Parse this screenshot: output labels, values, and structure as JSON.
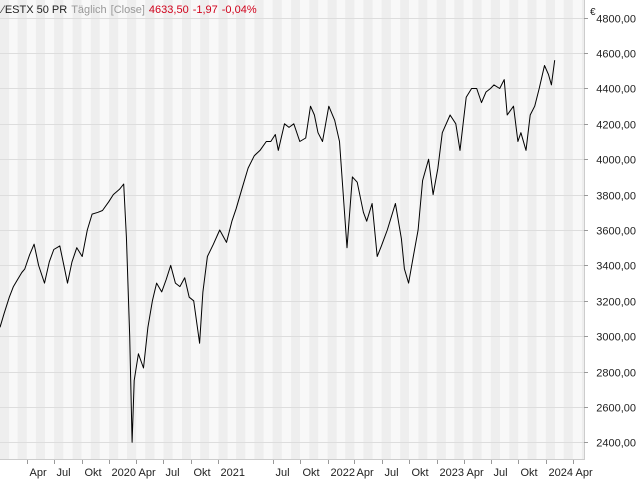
{
  "header": {
    "symbol_icon": "chart-line-icon",
    "name": "ESTX 50 PR",
    "period": "Täglich",
    "type": "[Close]",
    "last": "4633,50",
    "change": "-1,97",
    "change_pct": "-0,04%"
  },
  "colors": {
    "line": "#000000",
    "grid": "#dddddd",
    "band_light": "#f8f8f8",
    "band_dark": "#eeeeee",
    "negative": "#d0021b",
    "axis_text": "#222222"
  },
  "chart_data": {
    "type": "line",
    "title": "",
    "xlabel": "",
    "ylabel": "",
    "currency_symbol": "€",
    "ylim": [
      2300,
      4900
    ],
    "xlim": [
      "2019-01-01",
      "2024-05-08"
    ],
    "grid": true,
    "y_ticks": [
      "2400,00",
      "2600,00",
      "2800,00",
      "3000,00",
      "3200,00",
      "3400,00",
      "3600,00",
      "3800,00",
      "4000,00",
      "4200,00",
      "4400,00",
      "4600,00",
      "4800,00"
    ],
    "x_ticks": [
      {
        "date": "2019-04-01",
        "label": "Apr"
      },
      {
        "date": "2019-07-01",
        "label": "Jul"
      },
      {
        "date": "2019-10-01",
        "label": "Okt"
      },
      {
        "date": "2020-01-01",
        "label": "2020"
      },
      {
        "date": "2020-04-01",
        "label": "Apr"
      },
      {
        "date": "2020-07-01",
        "label": "Jul"
      },
      {
        "date": "2020-10-01",
        "label": "Okt"
      },
      {
        "date": "2021-01-01",
        "label": "2021"
      },
      {
        "date": "2021-07-01",
        "label": "Jul"
      },
      {
        "date": "2021-10-01",
        "label": "Okt"
      },
      {
        "date": "2022-01-01",
        "label": "2022"
      },
      {
        "date": "2022-04-01",
        "label": "Apr"
      },
      {
        "date": "2022-07-01",
        "label": "Jul"
      },
      {
        "date": "2022-10-01",
        "label": "Okt"
      },
      {
        "date": "2023-01-01",
        "label": "2023"
      },
      {
        "date": "2023-04-01",
        "label": "Apr"
      },
      {
        "date": "2023-07-01",
        "label": "Jul"
      },
      {
        "date": "2023-10-01",
        "label": "Okt"
      },
      {
        "date": "2024-01-01",
        "label": "2024"
      },
      {
        "date": "2024-04-01",
        "label": "Apr"
      }
    ],
    "series": [
      {
        "name": "",
        "x": [
          "2019-01-01",
          "2019-01-15",
          "2019-02-01",
          "2019-02-15",
          "2019-03-01",
          "2019-03-15",
          "2019-03-25",
          "2019-04-10",
          "2019-04-25",
          "2019-05-10",
          "2019-05-30",
          "2019-06-15",
          "2019-06-30",
          "2019-07-20",
          "2019-08-05",
          "2019-08-15",
          "2019-08-30",
          "2019-09-15",
          "2019-10-03",
          "2019-10-20",
          "2019-11-05",
          "2019-11-25",
          "2019-12-10",
          "2019-12-31",
          "2020-01-15",
          "2020-02-05",
          "2020-02-19",
          "2020-02-28",
          "2020-03-10",
          "2020-03-18",
          "2020-03-25",
          "2020-04-08",
          "2020-04-25",
          "2020-05-10",
          "2020-05-25",
          "2020-06-08",
          "2020-06-25",
          "2020-07-10",
          "2020-07-25",
          "2020-08-10",
          "2020-08-25",
          "2020-09-10",
          "2020-09-25",
          "2020-10-10",
          "2020-10-30",
          "2020-11-10",
          "2020-11-25",
          "2020-12-15",
          "2021-01-05",
          "2021-01-28",
          "2021-02-15",
          "2021-03-01",
          "2021-03-20",
          "2021-04-10",
          "2021-05-01",
          "2021-05-20",
          "2021-06-10",
          "2021-06-25",
          "2021-07-10",
          "2021-07-20",
          "2021-08-10",
          "2021-08-25",
          "2021-09-10",
          "2021-09-30",
          "2021-10-20",
          "2021-11-05",
          "2021-11-18",
          "2021-11-30",
          "2021-12-15",
          "2022-01-05",
          "2022-01-25",
          "2022-02-10",
          "2022-03-07",
          "2022-03-25",
          "2022-04-10",
          "2022-05-01",
          "2022-05-12",
          "2022-05-30",
          "2022-06-16",
          "2022-06-30",
          "2022-07-20",
          "2022-08-16",
          "2022-09-05",
          "2022-09-15",
          "2022-09-29",
          "2022-10-15",
          "2022-10-31",
          "2022-11-15",
          "2022-12-05",
          "2022-12-20",
          "2023-01-05",
          "2023-01-20",
          "2023-02-15",
          "2023-03-06",
          "2023-03-20",
          "2023-04-10",
          "2023-04-28",
          "2023-05-15",
          "2023-05-31",
          "2023-06-15",
          "2023-06-30",
          "2023-07-12",
          "2023-07-31",
          "2023-08-15",
          "2023-08-25",
          "2023-09-15",
          "2023-09-30",
          "2023-10-10",
          "2023-10-27",
          "2023-11-10",
          "2023-11-25",
          "2023-12-10",
          "2023-12-28",
          "2024-01-10",
          "2024-01-20",
          "2024-01-31"
        ],
        "y": [
          3050,
          3130,
          3220,
          3280,
          3320,
          3360,
          3380,
          3460,
          3520,
          3400,
          3300,
          3420,
          3490,
          3510,
          3380,
          3300,
          3420,
          3500,
          3450,
          3600,
          3690,
          3700,
          3710,
          3760,
          3800,
          3830,
          3860,
          3560,
          3000,
          2400,
          2750,
          2900,
          2820,
          3050,
          3200,
          3300,
          3250,
          3320,
          3400,
          3300,
          3280,
          3330,
          3220,
          3200,
          2960,
          3250,
          3450,
          3520,
          3600,
          3530,
          3650,
          3720,
          3830,
          3950,
          4020,
          4050,
          4100,
          4100,
          4140,
          4050,
          4200,
          4180,
          4200,
          4100,
          4120,
          4300,
          4250,
          4150,
          4100,
          4300,
          4220,
          4100,
          3500,
          3900,
          3870,
          3700,
          3650,
          3750,
          3450,
          3510,
          3600,
          3750,
          3550,
          3380,
          3300,
          3450,
          3600,
          3880,
          4000,
          3800,
          3950,
          4150,
          4250,
          4200,
          4050,
          4350,
          4400,
          4400,
          4320,
          4380,
          4400,
          4420,
          4400,
          4450,
          4250,
          4300,
          4100,
          4150,
          4050,
          4250,
          4300,
          4400,
          4530,
          4480,
          4420,
          4560
        ]
      }
    ]
  }
}
